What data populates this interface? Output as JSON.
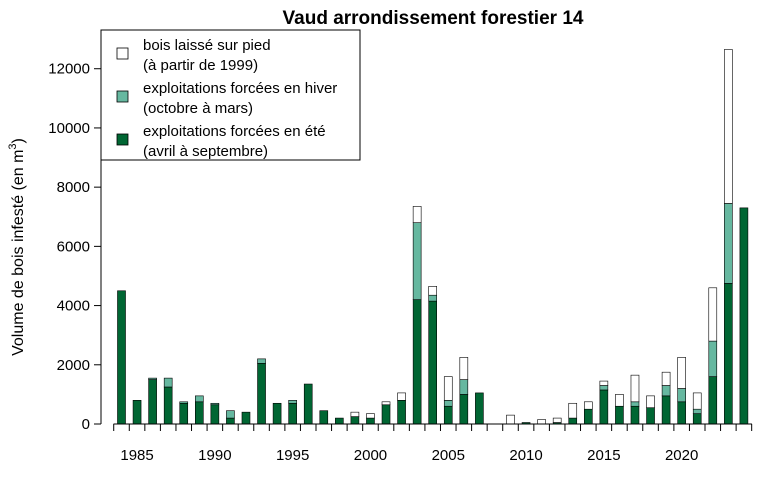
{
  "chart_data": {
    "type": "bar",
    "stacked": true,
    "title": "Vaud arrondissement forestier 14",
    "ylabel": "Volume de bois infesté (en m³)",
    "ylabel_main": "Volume de bois infesté (en m",
    "ylabel_sup": "3",
    "ylabel_close": ")",
    "xlabel": "",
    "ylim": [
      0,
      12700
    ],
    "yticks": [
      0,
      2000,
      4000,
      6000,
      8000,
      10000,
      12000
    ],
    "xtick_labels": [
      1985,
      1990,
      1995,
      2000,
      2005,
      2010,
      2015,
      2020
    ],
    "x": [
      1984,
      1985,
      1986,
      1987,
      1988,
      1989,
      1990,
      1991,
      1992,
      1993,
      1994,
      1995,
      1996,
      1997,
      1998,
      1999,
      2000,
      2001,
      2002,
      2003,
      2004,
      2005,
      2006,
      2007,
      2008,
      2009,
      2010,
      2011,
      2012,
      2013,
      2014,
      2015,
      2016,
      2017,
      2018,
      2019,
      2020,
      2021,
      2022,
      2023,
      2024
    ],
    "series": [
      {
        "name": "exploitations forcées en été",
        "name_line2": "(avril à septembre)",
        "color": "#006633",
        "values": [
          4500,
          800,
          1500,
          1250,
          700,
          750,
          650,
          200,
          400,
          2050,
          700,
          700,
          1350,
          450,
          200,
          250,
          200,
          650,
          800,
          4200,
          4150,
          600,
          1000,
          1050,
          0,
          0,
          50,
          0,
          50,
          200,
          500,
          1150,
          600,
          600,
          550,
          950,
          750,
          350,
          1600,
          4750,
          7300
        ]
      },
      {
        "name": "exploitations forcées en hiver",
        "name_line2": "(octobre à mars)",
        "color": "#66b8a0",
        "values": [
          0,
          0,
          50,
          300,
          50,
          200,
          50,
          250,
          0,
          150,
          0,
          100,
          0,
          0,
          0,
          0,
          0,
          0,
          0,
          2600,
          200,
          200,
          500,
          0,
          0,
          0,
          0,
          0,
          0,
          0,
          0,
          150,
          0,
          150,
          0,
          350,
          450,
          150,
          1200,
          2700,
          0
        ]
      },
      {
        "name": "bois laissé sur pied",
        "name_line2": "(à partir de 1999)",
        "color": "#ffffff",
        "values": [
          0,
          0,
          0,
          0,
          0,
          0,
          0,
          0,
          0,
          0,
          0,
          0,
          0,
          0,
          0,
          150,
          150,
          100,
          250,
          550,
          300,
          800,
          750,
          0,
          0,
          300,
          0,
          150,
          150,
          500,
          250,
          150,
          400,
          900,
          400,
          450,
          1050,
          550,
          1800,
          5200,
          0
        ]
      }
    ],
    "legend_position": "top-left",
    "legend_order": [
      2,
      1,
      0
    ],
    "grid": false
  }
}
